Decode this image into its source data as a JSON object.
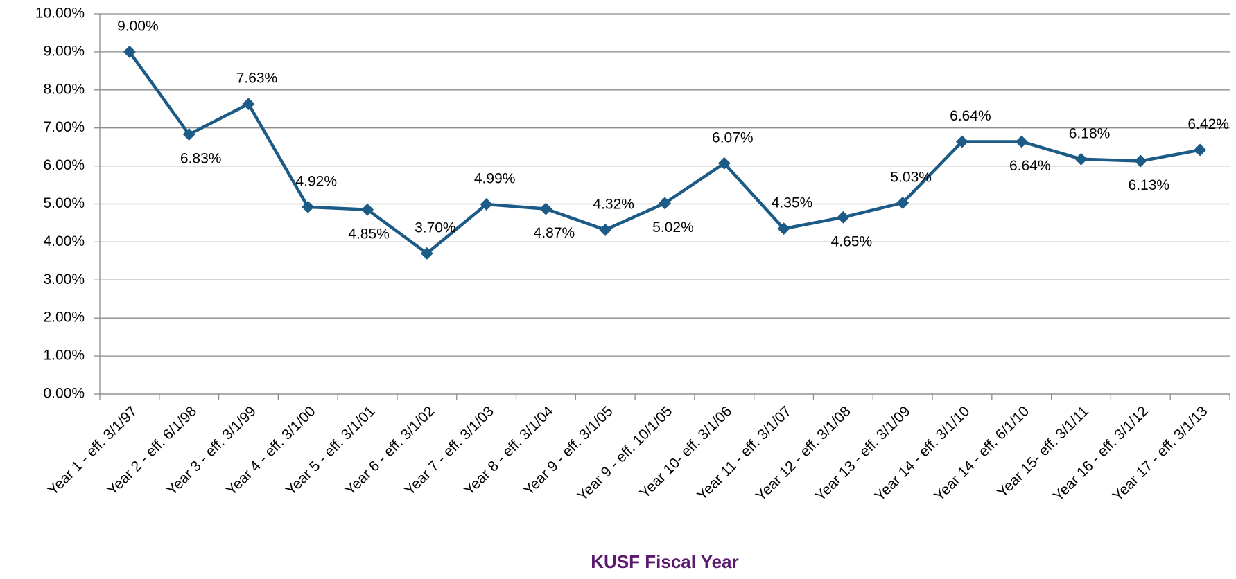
{
  "chart_data": {
    "type": "line",
    "x_label": "KUSF Fiscal Year",
    "categories": [
      "Year 1 - eff. 3/1/97",
      "Year 2 - eff. 6/1/98",
      "Year 3 - eff. 3/1/99",
      "Year 4 - eff. 3/1/00",
      "Year 5 - eff. 3/1/01",
      "Year 6 - eff. 3/1/02",
      "Year 7 - eff. 3/1/03",
      "Year 8 - eff. 3/1/04",
      "Year 9 - eff. 3/1/05",
      "Year 9 - eff. 10/1/05",
      "Year 10- eff. 3/1/06",
      "Year 11 - eff. 3/1/07",
      "Year 12 - eff. 3/1/08",
      "Year 13 - eff. 3/1/09",
      "Year 14 - eff. 3/1/10",
      "Year 14 - eff. 6/1/10",
      "Year 15- eff. 3/1/11",
      "Year 16 - eff. 3/1/12",
      "Year 17 - eff. 3/1/13"
    ],
    "values": [
      9.0,
      6.83,
      7.63,
      4.92,
      4.85,
      3.7,
      4.99,
      4.87,
      4.32,
      5.02,
      6.07,
      4.35,
      4.65,
      5.03,
      6.64,
      6.64,
      6.18,
      6.13,
      6.42
    ],
    "value_labels": [
      "9.00%",
      "6.83%",
      "7.63%",
      "4.92%",
      "4.85%",
      "3.70%",
      "4.99%",
      "4.87%",
      "4.32%",
      "5.02%",
      "6.07%",
      "4.35%",
      "4.65%",
      "5.03%",
      "6.64%",
      "6.64%",
      "6.18%",
      "6.13%",
      "6.42%"
    ],
    "color": "#1b5b86",
    "ylim": [
      0,
      10
    ],
    "yticks": [
      {
        "value": 0,
        "label": "0.00%"
      },
      {
        "value": 1,
        "label": "1.00%"
      },
      {
        "value": 2,
        "label": "2.00%"
      },
      {
        "value": 3,
        "label": "3.00%"
      },
      {
        "value": 4,
        "label": "4.00%"
      },
      {
        "value": 5,
        "label": "5.00%"
      },
      {
        "value": 6,
        "label": "6.00%"
      },
      {
        "value": 7,
        "label": "7.00%"
      },
      {
        "value": 8,
        "label": "8.00%"
      },
      {
        "value": 9,
        "label": "9.00%"
      },
      {
        "value": 10,
        "label": "10.00%"
      }
    ],
    "grid": true
  }
}
